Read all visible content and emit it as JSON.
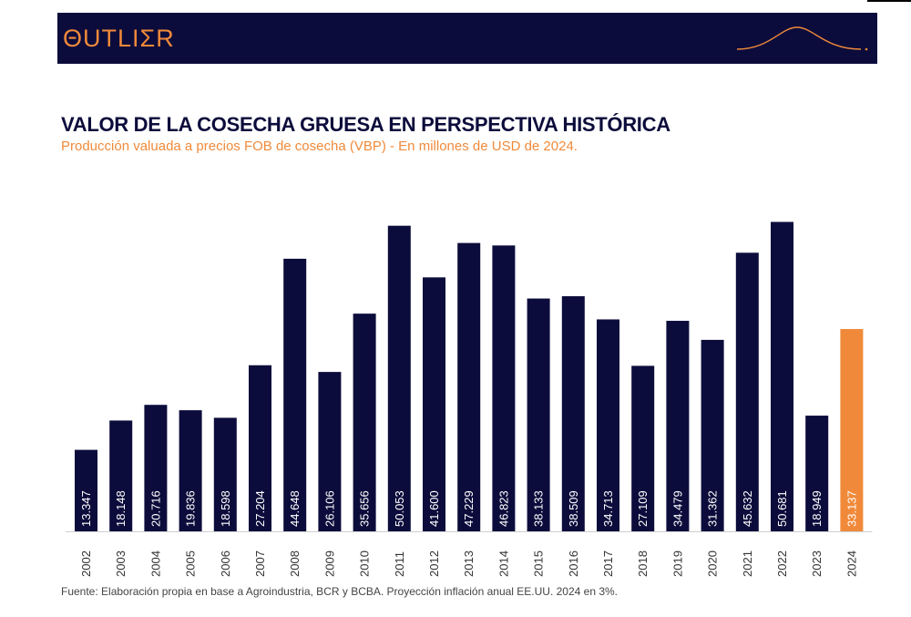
{
  "header": {
    "logo_text": "ΘUTLIΣR"
  },
  "colors": {
    "navy": "#0c0c3c",
    "accent": "#f08a3a"
  },
  "chart_data": {
    "type": "bar",
    "title": "VALOR DE LA COSECHA GRUESA EN PERSPECTIVA HISTÓRICA",
    "subtitle": "Producción valuada a precios FOB de cosecha (VBP) - En millones de USD de 2024.",
    "xlabel": "",
    "ylabel": "",
    "ylim": [
      0,
      51500
    ],
    "categories": [
      "2002",
      "2003",
      "2004",
      "2005",
      "2006",
      "2007",
      "2008",
      "2009",
      "2010",
      "2011",
      "2012",
      "2013",
      "2014",
      "2015",
      "2016",
      "2017",
      "2018",
      "2019",
      "2020",
      "2021",
      "2022",
      "2023",
      "2024"
    ],
    "values": [
      13347,
      18148,
      20716,
      19836,
      18598,
      27204,
      44648,
      26106,
      35656,
      50053,
      41600,
      47229,
      46823,
      38133,
      38509,
      34713,
      27109,
      34479,
      31362,
      45632,
      50681,
      18949,
      33137
    ],
    "labels": [
      "13.347",
      "18.148",
      "20.716",
      "19.836",
      "18.598",
      "27.204",
      "44.648",
      "26.106",
      "35.656",
      "50.053",
      "41.600",
      "47.229",
      "46.823",
      "38.133",
      "38.509",
      "34.713",
      "27.109",
      "34.479",
      "31.362",
      "45.632",
      "50.681",
      "18.949",
      "33.137"
    ],
    "highlight": [
      "2024"
    ]
  },
  "footer": {
    "source": "Fuente: Elaboración propia en base a Agroindustria, BCR y BCBA. Proyección inflación anual EE.UU. 2024 en 3%."
  }
}
